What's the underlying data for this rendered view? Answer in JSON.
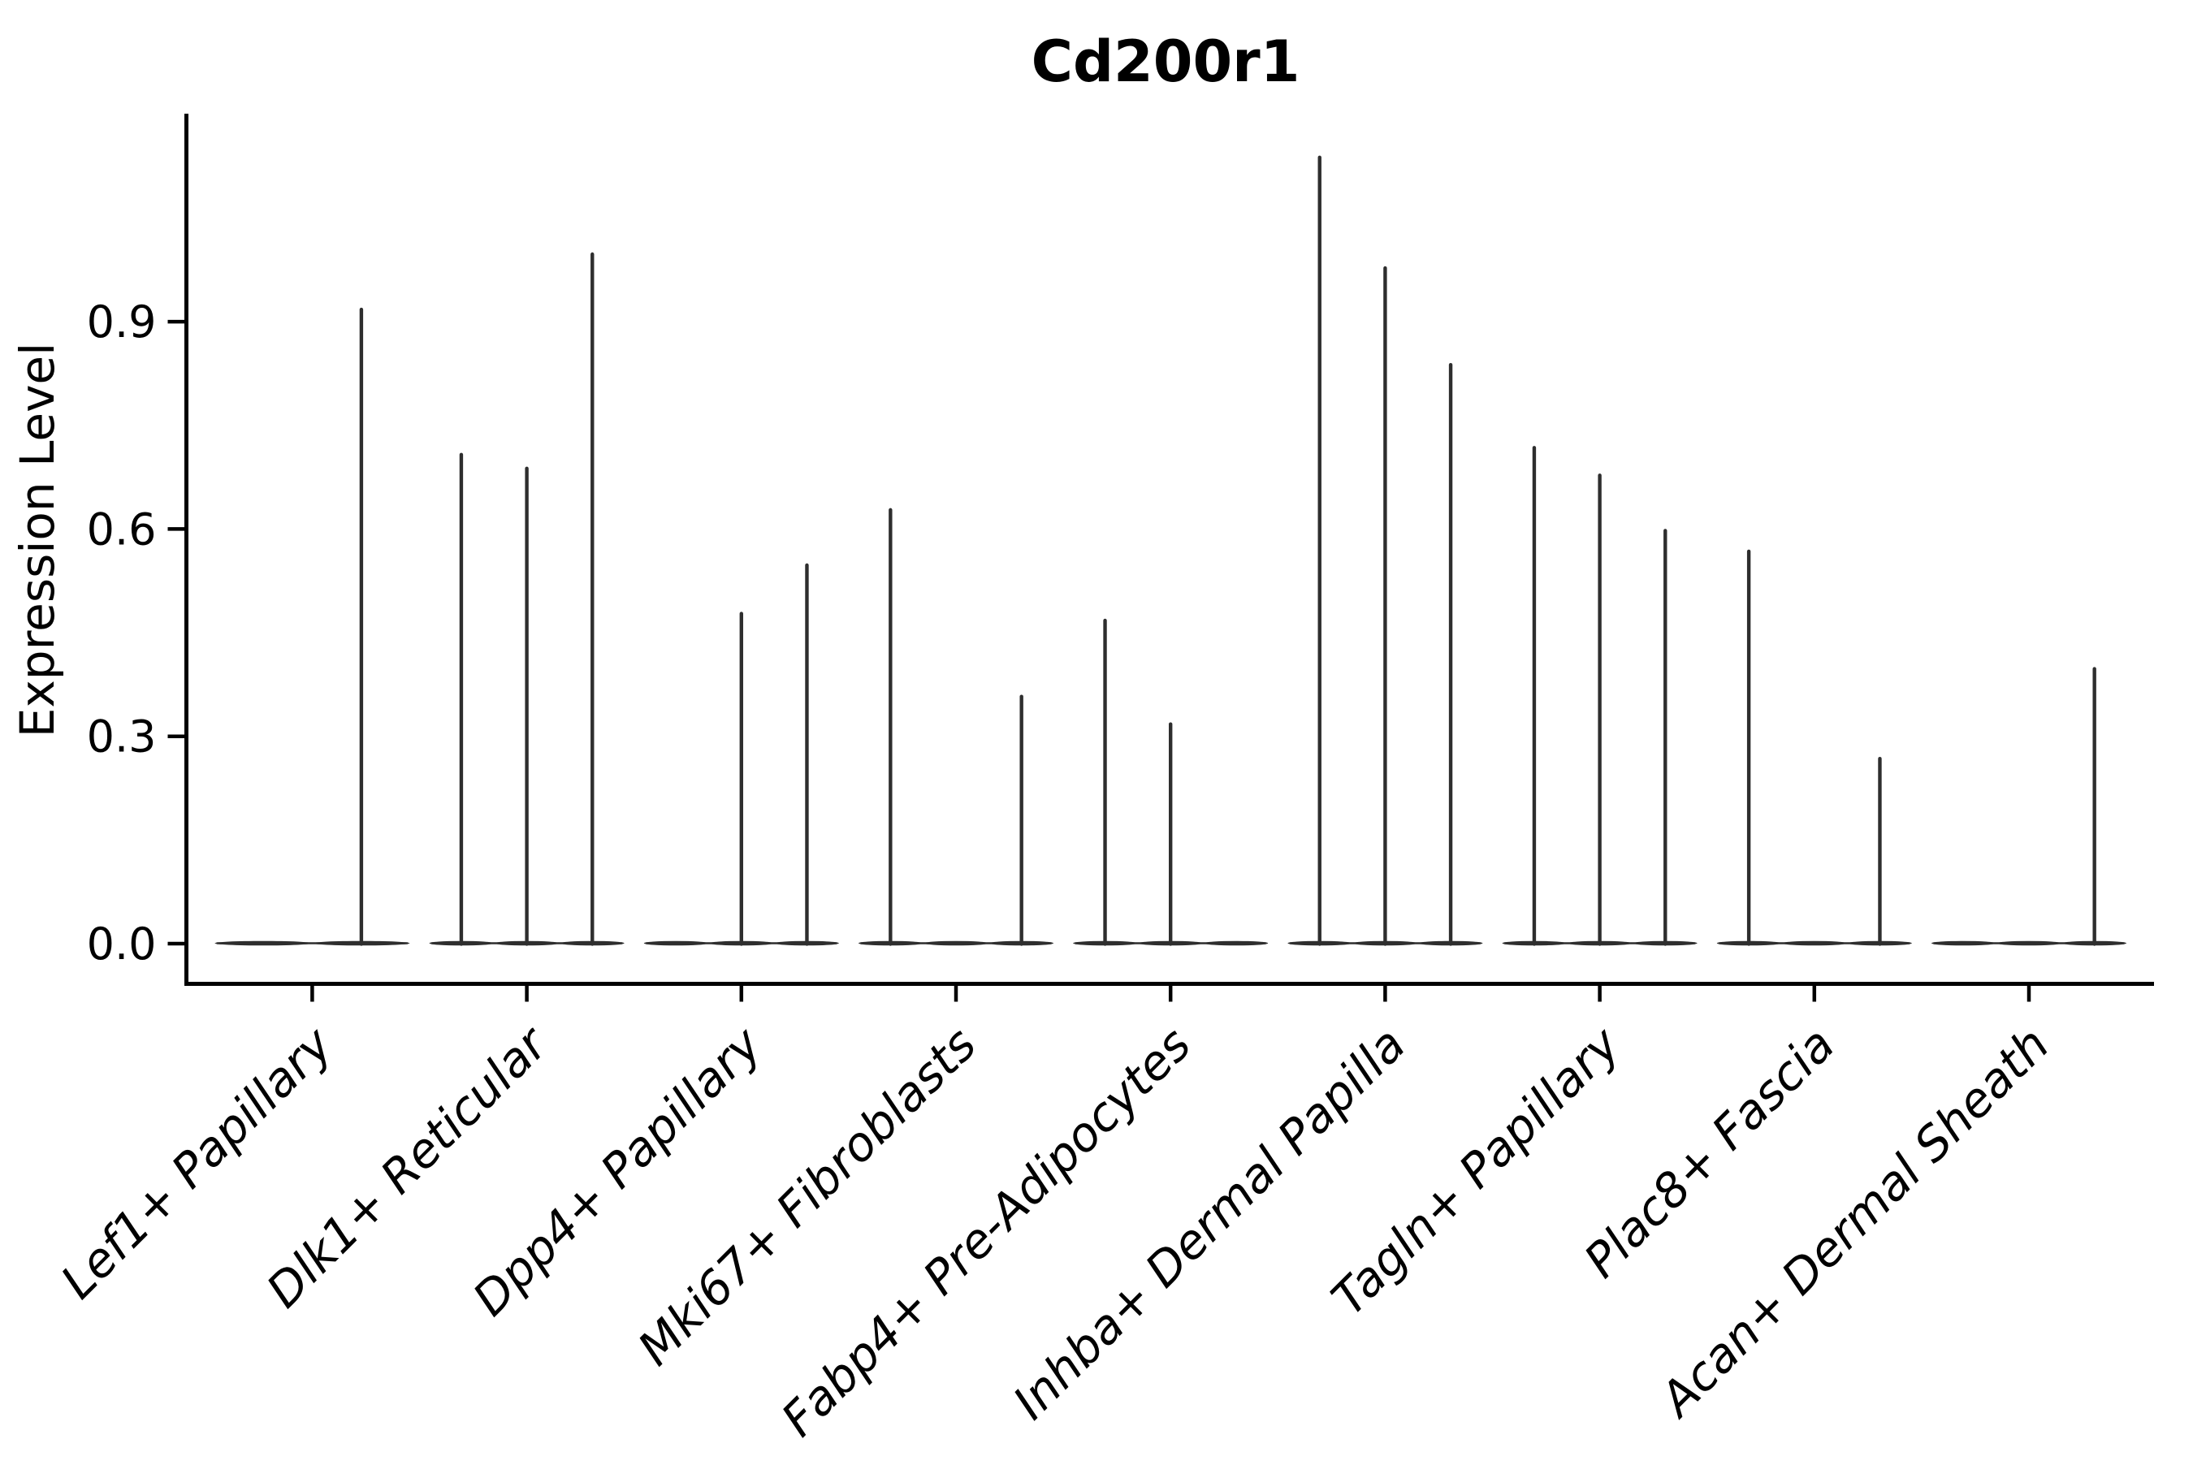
{
  "figure": {
    "background": "#ffffff"
  },
  "chart_data": {
    "type": "violin",
    "title": "Cd200r1",
    "xlabel": "",
    "ylabel": "Expression Level",
    "yticks": [
      "0.0",
      "0.3",
      "0.6",
      "0.9"
    ],
    "ytick_values": [
      0.0,
      0.3,
      0.6,
      0.9
    ],
    "ylim": [
      -0.06,
      1.2
    ],
    "grid": false,
    "legend": "none",
    "violin_color": "#2e2e2e",
    "axis_color": "#000000",
    "categories": [
      "Lef1+ Papillary",
      "Dlk1+ Reticular",
      "Dpp4+ Papillary",
      "Mki67+ Fibroblasts",
      "Fabp4+ Pre-Adipocytes",
      "Inhba+ Dermal Papilla",
      "Tagln+ Papillary",
      "Plac8+ Fascia",
      "Acan+ Dermal Sheath"
    ],
    "groups": [
      {
        "label": "Lef1+ Papillary",
        "n_violins": 2,
        "baseline_value": 0.0,
        "spikes": [
          {
            "violin": 1,
            "max": 0.92
          }
        ]
      },
      {
        "label": "Dlk1+ Reticular",
        "n_violins": 3,
        "baseline_value": 0.0,
        "spikes": [
          {
            "violin": 0,
            "max": 0.71
          },
          {
            "violin": 1,
            "max": 0.69
          },
          {
            "violin": 2,
            "max": 1.0
          }
        ]
      },
      {
        "label": "Dpp4+ Papillary",
        "n_violins": 3,
        "baseline_value": 0.0,
        "spikes": [
          {
            "violin": 1,
            "max": 0.48
          },
          {
            "violin": 2,
            "max": 0.55
          }
        ]
      },
      {
        "label": "Mki67+ Fibroblasts",
        "n_violins": 3,
        "baseline_value": 0.0,
        "spikes": [
          {
            "violin": 0,
            "max": 0.63
          },
          {
            "violin": 2,
            "max": 0.36
          }
        ]
      },
      {
        "label": "Fabp4+ Pre-Adipocytes",
        "n_violins": 3,
        "baseline_value": 0.0,
        "spikes": [
          {
            "violin": 0,
            "max": 0.47
          },
          {
            "violin": 1,
            "max": 0.32
          }
        ]
      },
      {
        "label": "Inhba+ Dermal Papilla",
        "n_violins": 3,
        "baseline_value": 0.0,
        "spikes": [
          {
            "violin": 0,
            "max": 1.14
          },
          {
            "violin": 1,
            "max": 0.98
          },
          {
            "violin": 2,
            "max": 0.84
          }
        ]
      },
      {
        "label": "Tagln+ Papillary",
        "n_violins": 3,
        "baseline_value": 0.0,
        "spikes": [
          {
            "violin": 0,
            "max": 0.72
          },
          {
            "violin": 1,
            "max": 0.68
          },
          {
            "violin": 2,
            "max": 0.6
          }
        ]
      },
      {
        "label": "Plac8+ Fascia",
        "n_violins": 3,
        "baseline_value": 0.0,
        "spikes": [
          {
            "violin": 0,
            "max": 0.57
          },
          {
            "violin": 2,
            "max": 0.27
          }
        ]
      },
      {
        "label": "Acan+ Dermal Sheath",
        "n_violins": 3,
        "baseline_value": 0.0,
        "spikes": [
          {
            "violin": 2,
            "max": 0.4
          }
        ]
      }
    ]
  }
}
